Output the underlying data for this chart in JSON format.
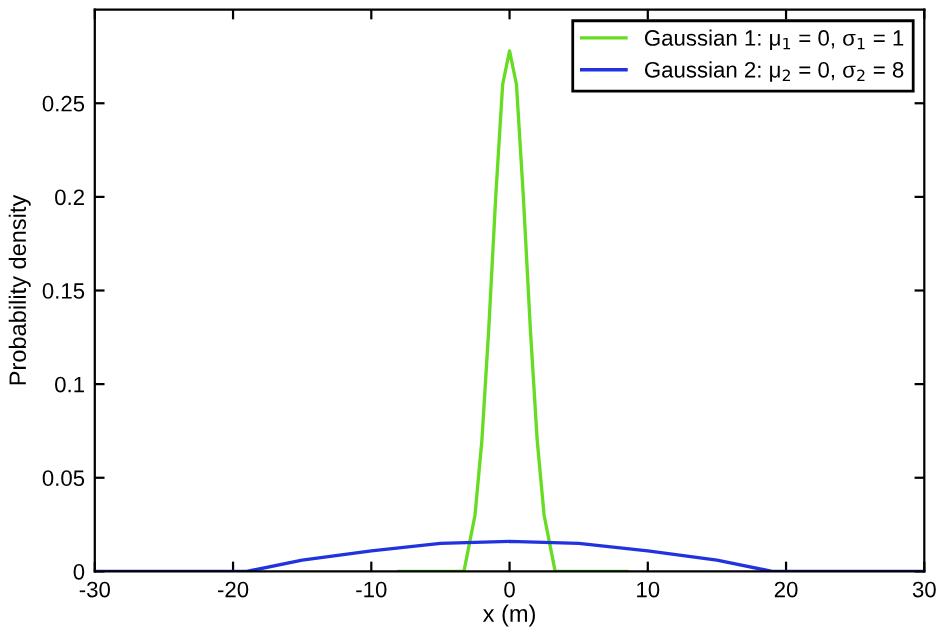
{
  "chart_data": {
    "type": "line",
    "xlabel": "x (m)",
    "ylabel": "Probability density",
    "xlim": [
      -30,
      30
    ],
    "xticks": [
      -30,
      -20,
      -10,
      0,
      10,
      20,
      30
    ],
    "ylim": [
      0,
      0.3
    ],
    "yticks": [
      0,
      0.05,
      0.1,
      0.15,
      0.2,
      0.25
    ],
    "legend": "top right",
    "grid": false,
    "marker": "none",
    "line_style": "solid",
    "series": [
      {
        "name": "Gaussian 1: μ$_{1}$ = 0, σ$_{1}$ = 1",
        "color": "#66dd22",
        "x": [
          -8,
          -3.3,
          -2.5,
          -2,
          -1.5,
          -1,
          -0.5,
          0,
          0.5,
          1,
          1.5,
          2,
          2.5,
          3.3,
          8.5
        ],
        "values": [
          0,
          0,
          0.03,
          0.07,
          0.13,
          0.2,
          0.26,
          0.278,
          0.26,
          0.2,
          0.13,
          0.07,
          0.03,
          0,
          0
        ]
      },
      {
        "name": "Gaussian 2: μ$_{2}$ = 0, σ$_{2}$ = 8",
        "color": "#2233dd",
        "x": [
          -30,
          -19,
          -15,
          -10,
          -5,
          0,
          5,
          10,
          15,
          19,
          30
        ],
        "values": [
          0,
          0,
          0.006,
          0.011,
          0.015,
          0.016,
          0.015,
          0.011,
          0.006,
          0,
          0
        ]
      }
    ]
  }
}
